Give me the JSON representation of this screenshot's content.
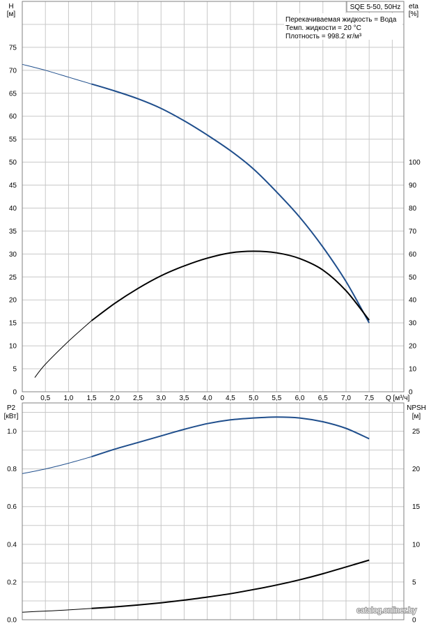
{
  "chart_data": [
    {
      "type": "line",
      "title": "SQE 5-50, 50Hz",
      "info": [
        "Перекачиваемая жидкость = Вода",
        "Темп. жидкости = 20 °C",
        "Плотность = 998.2 кг/м³"
      ],
      "xlabel": "Q [м³/ч]",
      "ylabel_left": [
        "H",
        "[м]"
      ],
      "ylabel_right": [
        "eta",
        "[%]"
      ],
      "xlim": [
        0,
        8.25
      ],
      "ylim_left": [
        0,
        85
      ],
      "ylim_right": [
        0,
        170
      ],
      "x_ticks": [
        "0",
        "0,5",
        "1,0",
        "1,5",
        "2,0",
        "2,5",
        "3,0",
        "3,5",
        "4,0",
        "4,5",
        "5,0",
        "5,5",
        "6,0",
        "6,5",
        "7,0",
        "7,5"
      ],
      "y_ticks_left": [
        "0",
        "5",
        "10",
        "15",
        "20",
        "25",
        "30",
        "35",
        "40",
        "45",
        "50",
        "55",
        "60",
        "65",
        "70",
        "75"
      ],
      "y_ticks_right": [
        "0",
        "10",
        "20",
        "30",
        "40",
        "50",
        "60",
        "70",
        "80",
        "90",
        "100"
      ],
      "grid": true,
      "series": [
        {
          "axis": "left",
          "color": "#1f4e8c",
          "x": [
            0,
            0.5,
            1.0,
            1.5,
            2.0,
            2.5,
            3.0,
            3.5,
            4.0,
            4.5,
            5.0,
            5.5,
            6.0,
            6.5,
            7.0,
            7.5
          ],
          "y": [
            71.3,
            70.0,
            68.5,
            67.0,
            65.5,
            63.8,
            61.7,
            59.0,
            55.9,
            52.5,
            48.5,
            43.5,
            38.0,
            31.5,
            24.0,
            15.0
          ]
        },
        {
          "axis": "right",
          "color": "#000000",
          "x": [
            0.27,
            0.5,
            1.0,
            1.5,
            2.0,
            2.5,
            3.0,
            3.5,
            4.0,
            4.5,
            5.0,
            5.5,
            6.0,
            6.5,
            7.0,
            7.5
          ],
          "y": [
            6.2,
            12.0,
            22.0,
            31.0,
            38.5,
            45.0,
            50.5,
            54.8,
            58.2,
            60.5,
            61.2,
            60.5,
            58.0,
            53.0,
            44.0,
            31.2
          ]
        }
      ]
    },
    {
      "type": "line",
      "xlim": [
        0,
        8.25
      ],
      "ylabel_left": [
        "P2",
        "[кВт]"
      ],
      "ylabel_right": [
        "NPSH",
        "[м]"
      ],
      "ylim_left": [
        0,
        1.15
      ],
      "ylim_right": [
        0,
        28.75
      ],
      "y_ticks_left": [
        "0.0",
        "0.2",
        "0.4",
        "0.6",
        "0.8",
        "1.0"
      ],
      "y_ticks_right": [
        "0",
        "5",
        "10",
        "15",
        "20",
        "25"
      ],
      "grid": true,
      "series": [
        {
          "axis": "left",
          "color": "#1f4e8c",
          "x": [
            0,
            0.5,
            1.0,
            1.5,
            2.0,
            2.5,
            3.0,
            3.5,
            4.0,
            4.5,
            5.0,
            5.5,
            6.0,
            6.5,
            7.0,
            7.5
          ],
          "y": [
            0.775,
            0.8,
            0.83,
            0.865,
            0.905,
            0.94,
            0.975,
            1.01,
            1.04,
            1.06,
            1.07,
            1.075,
            1.07,
            1.05,
            1.015,
            0.96
          ]
        },
        {
          "axis": "right",
          "color": "#000000",
          "x": [
            0,
            0.5,
            1.0,
            1.5,
            2.0,
            2.5,
            3.0,
            3.5,
            4.0,
            4.5,
            5.0,
            5.5,
            6.0,
            6.5,
            7.0,
            7.5
          ],
          "y": [
            1.0,
            1.15,
            1.3,
            1.5,
            1.7,
            1.95,
            2.25,
            2.6,
            3.0,
            3.45,
            4.0,
            4.6,
            5.3,
            6.1,
            7.0,
            7.9
          ]
        }
      ]
    }
  ],
  "watermark": "catalog.onliner.by"
}
